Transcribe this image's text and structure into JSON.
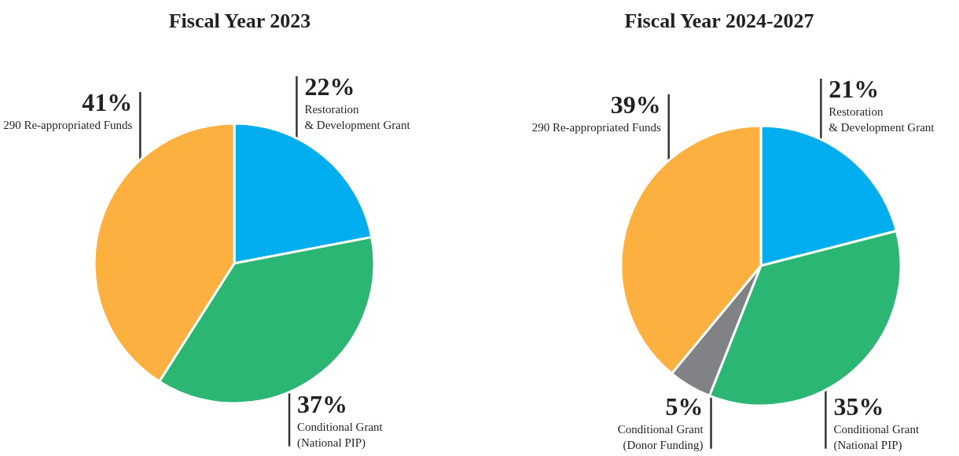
{
  "chart_data": [
    {
      "type": "pie",
      "title": "Fiscal Year 2023",
      "categories": [
        "Restoration\n& Development Grant",
        "Conditional Grant\n(National PIP)",
        "290 Re-appropriated Funds"
      ],
      "values": [
        22,
        37,
        41
      ],
      "colors": [
        "#00aeef",
        "#2bb673",
        "#fbb040"
      ],
      "value_labels": [
        "22%",
        "37%",
        "41%"
      ]
    },
    {
      "type": "pie",
      "title": "Fiscal Year 2024-2027",
      "categories": [
        "Restoration\n& Development Grant",
        "Conditional Grant\n(National PIP)",
        "Conditional Grant\n(Donor Funding)",
        "290 Re-appropriated Funds"
      ],
      "values": [
        21,
        35,
        5,
        39
      ],
      "colors": [
        "#00aeef",
        "#2bb673",
        "#808285",
        "#fbb040"
      ],
      "value_labels": [
        "21%",
        "35%",
        "5%",
        "39%"
      ]
    }
  ]
}
